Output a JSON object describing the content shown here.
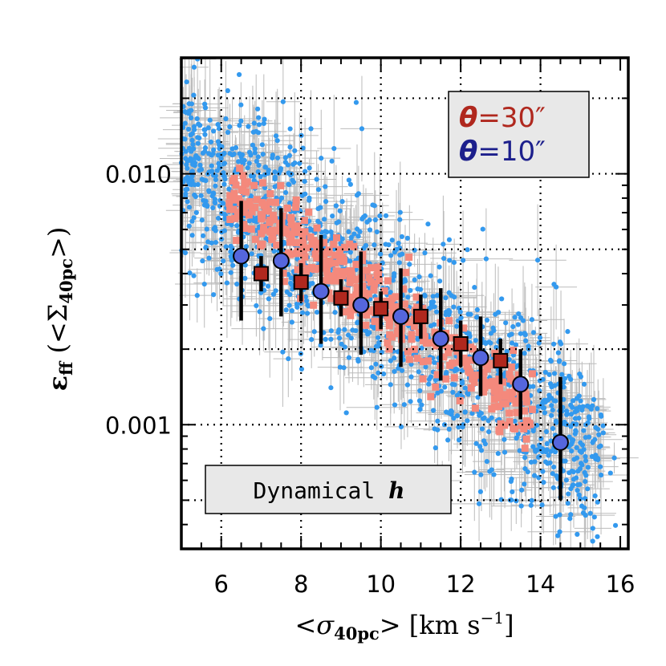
{
  "chart_data": {
    "type": "scatter",
    "x_scale": "linear",
    "y_scale": "log",
    "xlim": [
      5,
      16.2
    ],
    "ylim": [
      0.00032,
      0.029
    ],
    "grid": true,
    "grid_style": "dotted",
    "x_ticks": [
      6,
      8,
      10,
      12,
      14,
      16
    ],
    "x_tick_labels": [
      "6",
      "8",
      "10",
      "12",
      "14",
      "16"
    ],
    "y_ticks": [
      0.01,
      0.001
    ],
    "y_tick_labels": [
      "0.010",
      "0.001"
    ],
    "xlabel": {
      "open": "<",
      "symbol": "σ",
      "subscript": "40pc",
      "close": ">",
      "unit_open": " [km s",
      "unit_exp": "−1",
      "unit_close": "]"
    },
    "ylabel": {
      "symbol": "ε",
      "subscript": "ff",
      "paren_open": " (<",
      "sigma": "Σ",
      "sigma_sub": "40pc",
      "paren_close": ">)"
    },
    "legend": {
      "placement": "top-right",
      "entries": [
        {
          "theta": "θ",
          "value": "=30″",
          "color": "#b0281e"
        },
        {
          "theta": "θ",
          "value": "=10″",
          "color": "#1c1f8c"
        }
      ]
    },
    "annotation": {
      "placement": "bottom-left",
      "text": "Dynamical ",
      "italic": "h"
    },
    "colors": {
      "scatter_10": "#3399ee",
      "scatter_30": "#f4897c",
      "errorbar": "#bbbbbb",
      "binned_30": "#b0281e",
      "binned_10": "#5566dd"
    },
    "series": [
      {
        "theta": "10″",
        "marker": "circle",
        "points": [
          {
            "x": 6.5,
            "y": 0.0047,
            "ylo": 0.0026,
            "yhi": 0.0078
          },
          {
            "x": 7.5,
            "y": 0.0045,
            "ylo": 0.0027,
            "yhi": 0.0073
          },
          {
            "x": 8.5,
            "y": 0.0034,
            "ylo": 0.0021,
            "yhi": 0.0057
          },
          {
            "x": 9.5,
            "y": 0.003,
            "ylo": 0.0019,
            "yhi": 0.0049
          },
          {
            "x": 10.5,
            "y": 0.0027,
            "ylo": 0.0017,
            "yhi": 0.0042
          },
          {
            "x": 11.5,
            "y": 0.0022,
            "ylo": 0.0015,
            "yhi": 0.0035
          },
          {
            "x": 12.5,
            "y": 0.00185,
            "ylo": 0.0013,
            "yhi": 0.0027
          },
          {
            "x": 13.5,
            "y": 0.00145,
            "ylo": 0.00105,
            "yhi": 0.002
          },
          {
            "x": 14.5,
            "y": 0.00085,
            "ylo": 0.0005,
            "yhi": 0.00155
          }
        ]
      },
      {
        "theta": "30″",
        "marker": "square",
        "points": [
          {
            "x": 7.0,
            "y": 0.004,
            "ylo": 0.0034,
            "yhi": 0.0047
          },
          {
            "x": 8.0,
            "y": 0.0037,
            "ylo": 0.0031,
            "yhi": 0.0044
          },
          {
            "x": 9.0,
            "y": 0.0032,
            "ylo": 0.0027,
            "yhi": 0.0038
          },
          {
            "x": 10.0,
            "y": 0.0029,
            "ylo": 0.0024,
            "yhi": 0.0034
          },
          {
            "x": 11.0,
            "y": 0.0027,
            "ylo": 0.0022,
            "yhi": 0.0033
          },
          {
            "x": 12.0,
            "y": 0.0021,
            "ylo": 0.0017,
            "yhi": 0.0026
          },
          {
            "x": 13.0,
            "y": 0.0018,
            "ylo": 0.00145,
            "yhi": 0.0022
          }
        ]
      }
    ]
  }
}
